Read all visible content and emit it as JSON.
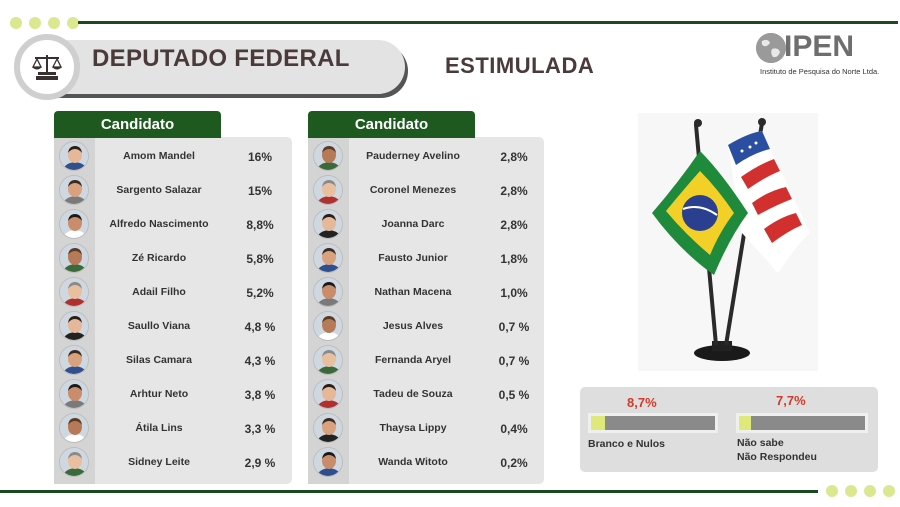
{
  "header": {
    "title": "DEPUTADO FEDERAL",
    "subtitle": "ESTIMULADA"
  },
  "logo": {
    "name": "IPEN",
    "tagline": "Instituto de Pesquisa do Norte Ltda."
  },
  "colors": {
    "header_green": "#1e5a20",
    "line_green": "#1c4a1f",
    "dot_yellow": "#dce88f",
    "pct_red": "#d23a2b"
  },
  "left_column": {
    "header": "Candidato",
    "candidates": [
      {
        "name": "Amom Mandel",
        "pct": "16%"
      },
      {
        "name": "Sargento Salazar",
        "pct": "15%"
      },
      {
        "name": "Alfredo Nascimento",
        "pct": "8,8%"
      },
      {
        "name": "Zé Ricardo",
        "pct": "5,8%"
      },
      {
        "name": "Adail Filho",
        "pct": "5,2%"
      },
      {
        "name": "Saullo Viana",
        "pct": "4,8 %"
      },
      {
        "name": "Silas Camara",
        "pct": "4,3 %"
      },
      {
        "name": "Arhtur Neto",
        "pct": "3,8 %"
      },
      {
        "name": "Átila Lins",
        "pct": "3,3 %"
      },
      {
        "name": "Sidney Leite",
        "pct": "2,9 %"
      }
    ]
  },
  "right_column": {
    "header": "Candidato",
    "candidates": [
      {
        "name": "Pauderney Avelino",
        "pct": "2,8%"
      },
      {
        "name": "Coronel Menezes",
        "pct": "2,8%"
      },
      {
        "name": "Joanna Darc",
        "pct": "2,8%"
      },
      {
        "name": "Fausto Junior",
        "pct": "1,8%"
      },
      {
        "name": "Nathan Macena",
        "pct": "1,0%"
      },
      {
        "name": "Jesus Alves",
        "pct": "0,7 %"
      },
      {
        "name": "Fernanda Aryel",
        "pct": "0,7 %"
      },
      {
        "name": "Tadeu de Souza",
        "pct": "0,5 %"
      },
      {
        "name": "Thaysa Lippy",
        "pct": "0,4%"
      },
      {
        "name": "Wanda Witoto",
        "pct": "0,2%"
      }
    ]
  },
  "summary": {
    "blank_null": {
      "pct": "8,7%",
      "label": "Branco e Nulos",
      "fraction": 0.087
    },
    "dont_know": {
      "pct": "7,7%",
      "label_line1": "Não sabe",
      "label_line2": "Não Respondeu",
      "fraction": 0.077
    }
  }
}
